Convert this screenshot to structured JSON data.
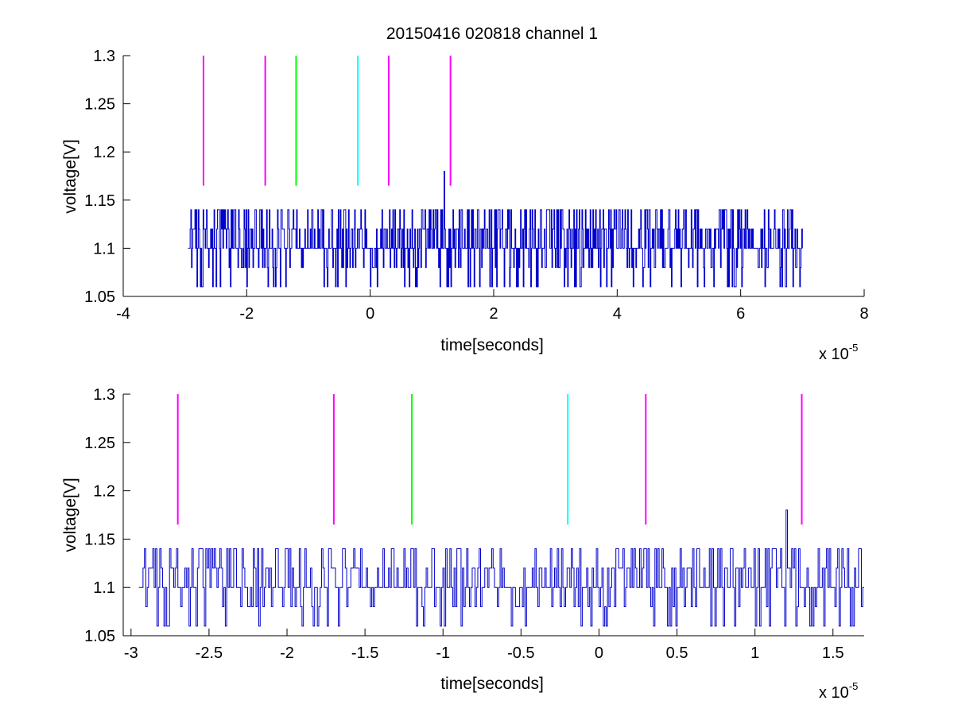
{
  "chart_data": [
    {
      "type": "line",
      "title": "20150416 020818 channel 1",
      "xlabel": "time[seconds]",
      "ylabel": "voltage[V]",
      "xlim": [
        -4e-05,
        8e-05
      ],
      "ylim": [
        1.05,
        1.3
      ],
      "x_ticks": [
        -4,
        -2,
        0,
        2,
        4,
        6,
        8
      ],
      "x_tick_labels": [
        "-4",
        "-2",
        "0",
        "2",
        "4",
        "6",
        "8"
      ],
      "y_ticks": [
        1.05,
        1.1,
        1.15,
        1.2,
        1.25,
        1.3
      ],
      "y_tick_labels": [
        "1.05",
        "1.1",
        "1.15",
        "1.2",
        "1.25",
        "1.3"
      ],
      "x_exponent_label": "x 10",
      "x_exponent": "-5",
      "grid": false,
      "signal": {
        "color": "#0000cc",
        "x_start": -2.95e-05,
        "x_end": 7e-05,
        "baseline": 1.1,
        "levels": [
          1.06,
          1.08,
          1.1,
          1.12,
          1.14
        ],
        "spike": {
          "x": 1.2e-05,
          "y": 1.18
        }
      },
      "markers": [
        {
          "x": -2.7e-05,
          "y_from": 1.165,
          "y_to": 1.3,
          "color": "#ff00ff"
        },
        {
          "x": -1.7e-05,
          "y_from": 1.165,
          "y_to": 1.3,
          "color": "#ff00ff"
        },
        {
          "x": -1.2e-05,
          "y_from": 1.165,
          "y_to": 1.3,
          "color": "#00ff00"
        },
        {
          "x": -2e-06,
          "y_from": 1.165,
          "y_to": 1.3,
          "color": "#00ffff"
        },
        {
          "x": 3e-06,
          "y_from": 1.165,
          "y_to": 1.3,
          "color": "#ff00ff"
        },
        {
          "x": 1.3e-05,
          "y_from": 1.165,
          "y_to": 1.3,
          "color": "#ff00ff"
        }
      ]
    },
    {
      "type": "line",
      "title": "",
      "xlabel": "time[seconds]",
      "ylabel": "voltage[V]",
      "xlim": [
        -3.05e-05,
        1.7e-05
      ],
      "ylim": [
        1.05,
        1.3
      ],
      "x_ticks": [
        -3,
        -2.5,
        -2,
        -1.5,
        -1,
        -0.5,
        0,
        0.5,
        1,
        1.5
      ],
      "x_tick_labels": [
        "-3",
        "-2.5",
        "-2",
        "-1.5",
        "-1",
        "-0.5",
        "0",
        "0.5",
        "1",
        "1.5"
      ],
      "y_ticks": [
        1.05,
        1.1,
        1.15,
        1.2,
        1.25,
        1.3
      ],
      "y_tick_labels": [
        "1.05",
        "1.1",
        "1.15",
        "1.2",
        "1.25",
        "1.3"
      ],
      "x_exponent_label": "x 10",
      "x_exponent": "-5",
      "grid": false,
      "signal": {
        "color": "#0000cc",
        "x_start": -2.95e-05,
        "x_end": 1.7e-05,
        "baseline": 1.1,
        "levels": [
          1.06,
          1.08,
          1.1,
          1.12,
          1.14
        ],
        "spike": {
          "x": 1.2e-05,
          "y": 1.18
        }
      },
      "markers": [
        {
          "x": -2.7e-05,
          "y_from": 1.165,
          "y_to": 1.3,
          "color": "#ff00ff"
        },
        {
          "x": -1.7e-05,
          "y_from": 1.165,
          "y_to": 1.3,
          "color": "#ff00ff"
        },
        {
          "x": -1.2e-05,
          "y_from": 1.165,
          "y_to": 1.3,
          "color": "#00ff00"
        },
        {
          "x": -2e-06,
          "y_from": 1.165,
          "y_to": 1.3,
          "color": "#00ffff"
        },
        {
          "x": 3e-06,
          "y_from": 1.165,
          "y_to": 1.3,
          "color": "#ff00ff"
        },
        {
          "x": 1.3e-05,
          "y_from": 1.165,
          "y_to": 1.3,
          "color": "#ff00ff"
        }
      ]
    }
  ]
}
